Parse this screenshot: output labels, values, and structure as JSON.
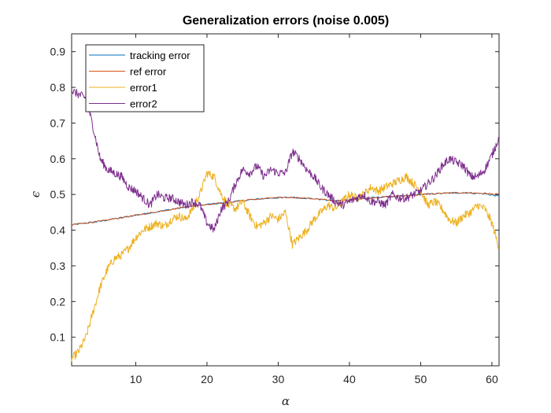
{
  "chart_data": {
    "type": "line",
    "title": "Generalization errors (noise 0.005)",
    "xlabel": "α",
    "ylabel": "ϵ",
    "xlim": [
      1,
      61
    ],
    "ylim": [
      0.02,
      0.95
    ],
    "xticks": [
      10,
      20,
      30,
      40,
      50,
      60
    ],
    "yticks": [
      0.1,
      0.2,
      0.3,
      0.4,
      0.5,
      0.6,
      0.7,
      0.8,
      0.9
    ],
    "grid": false,
    "legend_position": "top-left",
    "series": [
      {
        "name": "tracking error",
        "color": "#0072BD",
        "x": [
          1,
          3,
          5,
          8,
          11,
          14,
          17,
          20,
          23,
          26,
          29,
          32,
          35,
          38,
          41,
          44,
          47,
          50,
          53,
          56,
          59,
          61
        ],
        "y": [
          0.415,
          0.42,
          0.425,
          0.435,
          0.445,
          0.455,
          0.465,
          0.472,
          0.478,
          0.485,
          0.49,
          0.492,
          0.488,
          0.482,
          0.487,
          0.492,
          0.495,
          0.5,
          0.503,
          0.505,
          0.502,
          0.495
        ]
      },
      {
        "name": "ref error",
        "color": "#D95319",
        "x": [
          1,
          3,
          5,
          8,
          11,
          14,
          17,
          20,
          23,
          26,
          29,
          32,
          35,
          38,
          41,
          44,
          47,
          50,
          53,
          56,
          59,
          61
        ],
        "y": [
          0.415,
          0.42,
          0.425,
          0.435,
          0.445,
          0.455,
          0.465,
          0.472,
          0.478,
          0.485,
          0.49,
          0.492,
          0.488,
          0.482,
          0.487,
          0.492,
          0.495,
          0.5,
          0.503,
          0.505,
          0.503,
          0.5
        ]
      },
      {
        "name": "error1",
        "color": "#EDB120",
        "x": [
          1,
          2,
          3,
          4,
          5,
          6,
          7,
          8,
          9,
          10,
          11,
          12,
          13,
          14,
          15,
          16,
          17,
          18,
          19,
          20,
          21,
          22,
          23,
          24,
          25,
          26,
          27,
          28,
          29,
          30,
          31,
          32,
          33,
          34,
          35,
          36,
          37,
          38,
          39,
          40,
          41,
          42,
          43,
          44,
          45,
          46,
          47,
          48,
          49,
          50,
          51,
          52,
          53,
          54,
          55,
          56,
          57,
          58,
          59,
          60,
          61
        ],
        "y": [
          0.04,
          0.06,
          0.1,
          0.17,
          0.24,
          0.29,
          0.32,
          0.33,
          0.35,
          0.38,
          0.4,
          0.41,
          0.42,
          0.41,
          0.43,
          0.44,
          0.43,
          0.46,
          0.5,
          0.56,
          0.55,
          0.5,
          0.47,
          0.46,
          0.48,
          0.44,
          0.41,
          0.42,
          0.44,
          0.43,
          0.45,
          0.36,
          0.38,
          0.4,
          0.43,
          0.45,
          0.47,
          0.46,
          0.48,
          0.5,
          0.49,
          0.5,
          0.52,
          0.51,
          0.52,
          0.53,
          0.54,
          0.55,
          0.53,
          0.51,
          0.47,
          0.48,
          0.46,
          0.43,
          0.42,
          0.44,
          0.45,
          0.47,
          0.46,
          0.42,
          0.35
        ]
      },
      {
        "name": "error2",
        "color": "#7E2F8E",
        "x": [
          1,
          2,
          3,
          4,
          5,
          6,
          7,
          8,
          9,
          10,
          11,
          12,
          13,
          14,
          15,
          16,
          17,
          18,
          19,
          20,
          21,
          22,
          23,
          24,
          25,
          26,
          27,
          28,
          29,
          30,
          31,
          32,
          33,
          34,
          35,
          36,
          37,
          38,
          39,
          40,
          41,
          42,
          43,
          44,
          45,
          46,
          47,
          48,
          49,
          50,
          51,
          52,
          53,
          54,
          55,
          56,
          57,
          58,
          59,
          60,
          61
        ],
        "y": [
          0.79,
          0.78,
          0.77,
          0.69,
          0.6,
          0.57,
          0.56,
          0.55,
          0.52,
          0.51,
          0.49,
          0.47,
          0.5,
          0.49,
          0.49,
          0.48,
          0.47,
          0.48,
          0.47,
          0.42,
          0.4,
          0.46,
          0.48,
          0.53,
          0.57,
          0.56,
          0.58,
          0.55,
          0.57,
          0.56,
          0.56,
          0.62,
          0.6,
          0.57,
          0.55,
          0.52,
          0.5,
          0.48,
          0.47,
          0.48,
          0.49,
          0.5,
          0.48,
          0.48,
          0.47,
          0.5,
          0.49,
          0.49,
          0.5,
          0.51,
          0.53,
          0.55,
          0.58,
          0.6,
          0.59,
          0.58,
          0.55,
          0.55,
          0.57,
          0.61,
          0.66
        ]
      }
    ]
  }
}
